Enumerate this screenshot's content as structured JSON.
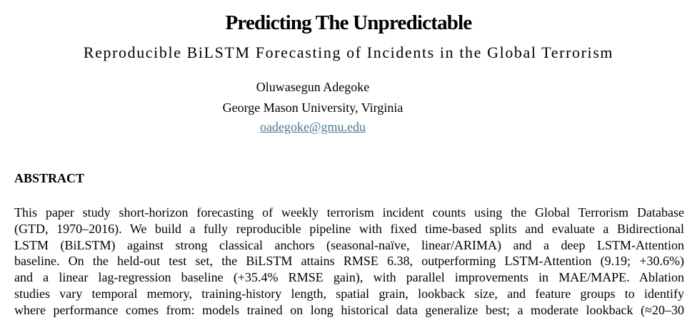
{
  "paper": {
    "title": "Predicting The Unpredictable",
    "subtitle": "Reproducible BiLSTM Forecasting of Incidents in the Global Terrorism",
    "author": "Oluwasegun Adegoke",
    "affiliation": "George Mason University, Virginia",
    "email": "oadegoke@gmu.edu",
    "section_heading": "ABSTRACT",
    "abstract_lines": [
      "This paper study short-horizon forecasting of weekly terrorism incident counts using the Global Terrorism Database",
      "(GTD, 1970–2016). We build a fully reproducible pipeline with fixed time-based splits and evaluate a Bidirectional",
      "LSTM (BiLSTM) against strong classical anchors (seasonal-naïve, linear/ARIMA) and a deep LSTM-Attention",
      "baseline. On the held-out test set, the BiLSTM attains RMSE 6.38, outperforming LSTM-Attention (9.19; +30.6%)",
      "and a linear lag-regression baseline (+35.4% RMSE gain), with parallel improvements in MAE/MAPE. Ablation",
      "studies vary temporal memory, training-history length, spatial grain, lookback size, and feature groups to identify",
      "where performance comes from: models trained on long historical data generalize best; a moderate lookback (≈20–30"
    ]
  }
}
